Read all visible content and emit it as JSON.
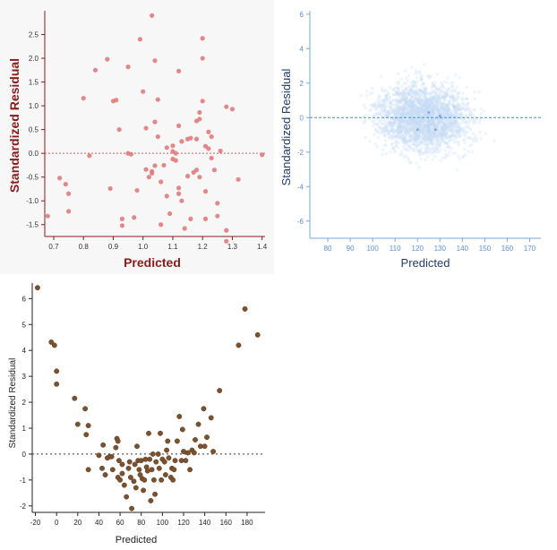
{
  "chart_data": [
    {
      "id": "residual-plot-red",
      "type": "scatter",
      "title": "",
      "xlabel": "Predicted",
      "ylabel": "Standardized Residual",
      "xlim": [
        0.67,
        1.41
      ],
      "ylim": [
        -1.75,
        3.0
      ],
      "xticks": [
        "0.7",
        "0.8",
        "0.9",
        "1.0",
        "1.1",
        "1.2",
        "1.3",
        "1.4"
      ],
      "yticks": [
        "-1.5",
        "-1.0",
        "-0.5",
        "0.0",
        "0.5",
        "1.0",
        "1.5",
        "2.0",
        "2.5"
      ],
      "reference_line": 0,
      "colors": {
        "point": "#e07b7b",
        "axis": "#8b1a1a",
        "label": "#8b1a1a",
        "refline": "#d06060"
      },
      "points": [
        [
          0.68,
          -1.32
        ],
        [
          0.72,
          -0.52
        ],
        [
          0.74,
          -0.65
        ],
        [
          0.75,
          -0.85
        ],
        [
          0.75,
          -1.22
        ],
        [
          0.8,
          1.16
        ],
        [
          0.82,
          -0.05
        ],
        [
          0.84,
          1.75
        ],
        [
          0.88,
          1.98
        ],
        [
          0.89,
          -0.74
        ],
        [
          0.9,
          1.1
        ],
        [
          0.91,
          1.12
        ],
        [
          0.92,
          0.5
        ],
        [
          0.93,
          -1.52
        ],
        [
          0.93,
          -1.38
        ],
        [
          0.95,
          1.82
        ],
        [
          0.95,
          0.0
        ],
        [
          0.96,
          -0.02
        ],
        [
          0.97,
          -1.35
        ],
        [
          0.98,
          -0.78
        ],
        [
          0.99,
          2.4
        ],
        [
          1.0,
          1.3
        ],
        [
          1.01,
          0.53
        ],
        [
          1.01,
          -0.34
        ],
        [
          1.02,
          -0.5
        ],
        [
          1.03,
          2.9
        ],
        [
          1.03,
          -0.42
        ],
        [
          1.03,
          -0.38
        ],
        [
          1.04,
          1.95
        ],
        [
          1.04,
          0.66
        ],
        [
          1.04,
          -0.26
        ],
        [
          1.05,
          1.13
        ],
        [
          1.05,
          0.35
        ],
        [
          1.06,
          -1.5
        ],
        [
          1.06,
          -0.6
        ],
        [
          1.07,
          -0.25
        ],
        [
          1.08,
          0.12
        ],
        [
          1.08,
          -0.9
        ],
        [
          1.09,
          -1.27
        ],
        [
          1.1,
          0.16
        ],
        [
          1.1,
          0.04
        ],
        [
          1.1,
          -0.12
        ],
        [
          1.11,
          0.0
        ],
        [
          1.11,
          -0.15
        ],
        [
          1.12,
          1.73
        ],
        [
          1.12,
          0.58
        ],
        [
          1.12,
          -0.73
        ],
        [
          1.12,
          -0.85
        ],
        [
          1.13,
          0.25
        ],
        [
          1.13,
          -1.0
        ],
        [
          1.14,
          -1.58
        ],
        [
          1.15,
          0.3
        ],
        [
          1.15,
          -0.48
        ],
        [
          1.16,
          0.32
        ],
        [
          1.16,
          -1.38
        ],
        [
          1.17,
          -0.4
        ],
        [
          1.18,
          0.68
        ],
        [
          1.18,
          0.3
        ],
        [
          1.18,
          -0.35
        ],
        [
          1.19,
          0.86
        ],
        [
          1.19,
          0.72
        ],
        [
          1.19,
          -0.5
        ],
        [
          1.2,
          2.42
        ],
        [
          1.2,
          2.0
        ],
        [
          1.2,
          1.1
        ],
        [
          1.21,
          0.15
        ],
        [
          1.21,
          -0.8
        ],
        [
          1.21,
          -1.38
        ],
        [
          1.22,
          0.45
        ],
        [
          1.22,
          0.1
        ],
        [
          1.23,
          0.35
        ],
        [
          1.23,
          -0.1
        ],
        [
          1.24,
          -0.35
        ],
        [
          1.25,
          -1.05
        ],
        [
          1.25,
          -1.32
        ],
        [
          1.26,
          0.05
        ],
        [
          1.28,
          0.98
        ],
        [
          1.28,
          -1.62
        ],
        [
          1.28,
          -1.85
        ],
        [
          1.3,
          0.93
        ],
        [
          1.32,
          -0.55
        ],
        [
          1.4,
          -0.03
        ]
      ]
    },
    {
      "id": "residual-plot-blue",
      "type": "scatter",
      "title": "",
      "xlabel": "Predicted",
      "ylabel": "Standardized Residual",
      "xlim": [
        72,
        175
      ],
      "ylim": [
        -7.0,
        6.2
      ],
      "xticks": [
        "80",
        "90",
        "100",
        "110",
        "120",
        "130",
        "140",
        "150",
        "160",
        "170"
      ],
      "yticks": [
        "-6",
        "-4",
        "-2",
        "0",
        "2",
        "4",
        "6"
      ],
      "reference_line": 0,
      "colors": {
        "point": "#c7dcf4",
        "axis": "#7aa7de",
        "label": "#1f3d66",
        "refline": "#5f96db"
      }
    },
    {
      "id": "residual-plot-brown",
      "type": "scatter",
      "title": "",
      "xlabel": "Predicted",
      "ylabel": "Standardized Residual",
      "xlim": [
        -23,
        197
      ],
      "ylim": [
        -2.25,
        6.6
      ],
      "xticks": [
        "-20",
        "0",
        "20",
        "40",
        "60",
        "80",
        "100",
        "120",
        "140",
        "160",
        "180"
      ],
      "yticks": [
        "-2",
        "-1",
        "0",
        "1",
        "2",
        "3",
        "4",
        "5",
        "6"
      ],
      "reference_line": 0,
      "colors": {
        "point": "#7a5230",
        "axis": "#222222",
        "label": "#222222",
        "refline": "#333333"
      },
      "points": [
        [
          -18,
          6.42
        ],
        [
          -5,
          4.32
        ],
        [
          -2,
          4.2
        ],
        [
          0,
          3.2
        ],
        [
          0,
          2.7
        ],
        [
          17,
          2.15
        ],
        [
          20,
          1.15
        ],
        [
          27,
          1.75
        ],
        [
          28,
          0.75
        ],
        [
          30,
          -0.6
        ],
        [
          30,
          1.1
        ],
        [
          40,
          -0.05
        ],
        [
          43,
          -0.55
        ],
        [
          44,
          0.35
        ],
        [
          46,
          -0.8
        ],
        [
          48,
          -0.15
        ],
        [
          50,
          -0.1
        ],
        [
          52,
          -0.1
        ],
        [
          53,
          -0.6
        ],
        [
          56,
          0.25
        ],
        [
          57,
          0.6
        ],
        [
          58,
          0.5
        ],
        [
          58,
          -0.9
        ],
        [
          59,
          -0.25
        ],
        [
          60,
          -1.0
        ],
        [
          62,
          -0.4
        ],
        [
          62,
          -0.75
        ],
        [
          64,
          -1.2
        ],
        [
          66,
          -1.65
        ],
        [
          68,
          -0.55
        ],
        [
          69,
          -0.3
        ],
        [
          70,
          -0.9
        ],
        [
          71,
          -2.1
        ],
        [
          73,
          -1.05
        ],
        [
          74,
          -0.4
        ],
        [
          75,
          -1.3
        ],
        [
          76,
          0.3
        ],
        [
          77,
          -0.25
        ],
        [
          78,
          -0.6
        ],
        [
          79,
          -0.8
        ],
        [
          80,
          -0.25
        ],
        [
          81,
          -0.95
        ],
        [
          82,
          -1.4
        ],
        [
          83,
          -1.0
        ],
        [
          84,
          -0.2
        ],
        [
          85,
          -0.5
        ],
        [
          86,
          -0.65
        ],
        [
          87,
          0.8
        ],
        [
          88,
          -0.2
        ],
        [
          89,
          -1.8
        ],
        [
          90,
          -0.6
        ],
        [
          91,
          0.0
        ],
        [
          92,
          -1.0
        ],
        [
          93,
          -1.55
        ],
        [
          94,
          -0.3
        ],
        [
          96,
          0.0
        ],
        [
          97,
          -0.55
        ],
        [
          98,
          0.8
        ],
        [
          99,
          -1.0
        ],
        [
          100,
          -0.2
        ],
        [
          102,
          -0.3
        ],
        [
          103,
          -0.8
        ],
        [
          104,
          0.15
        ],
        [
          105,
          0.5
        ],
        [
          106,
          -0.15
        ],
        [
          108,
          -0.9
        ],
        [
          109,
          -0.55
        ],
        [
          110,
          -1.0
        ],
        [
          111,
          -0.6
        ],
        [
          112,
          -0.25
        ],
        [
          114,
          0.5
        ],
        [
          116,
          1.45
        ],
        [
          118,
          -0.25
        ],
        [
          119,
          0.95
        ],
        [
          120,
          0.1
        ],
        [
          122,
          -0.25
        ],
        [
          124,
          0.05
        ],
        [
          126,
          -0.6
        ],
        [
          128,
          0.15
        ],
        [
          130,
          0.05
        ],
        [
          131,
          0.55
        ],
        [
          134,
          1.15
        ],
        [
          136,
          0.3
        ],
        [
          139,
          1.75
        ],
        [
          140,
          0.3
        ],
        [
          142,
          0.65
        ],
        [
          146,
          1.4
        ],
        [
          148,
          0.1
        ],
        [
          154,
          2.45
        ],
        [
          172,
          4.2
        ],
        [
          178,
          5.6
        ],
        [
          190,
          4.6
        ]
      ]
    }
  ]
}
